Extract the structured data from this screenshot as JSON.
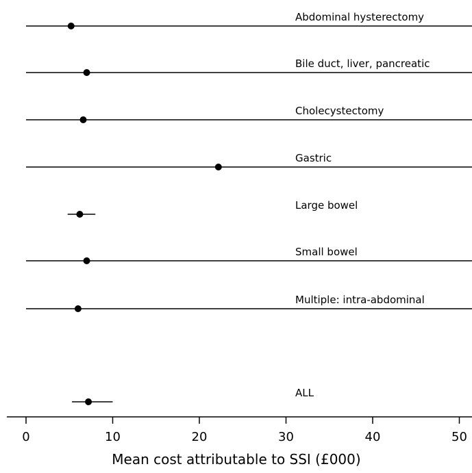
{
  "chart_data": {
    "type": "forest",
    "xlabel": "Mean cost attributable to SSI (£000)",
    "xlim": [
      -2,
      51.5
    ],
    "xticks": [
      0,
      10,
      20,
      30,
      40,
      50
    ],
    "grid": false,
    "rows": [
      {
        "label": "Abdominal hysterectomy",
        "estimate": 5.2,
        "ci": [
          0,
          51.5
        ]
      },
      {
        "label": "Bile duct, liver, pancreatic",
        "estimate": 7.0,
        "ci": [
          0,
          51.5
        ]
      },
      {
        "label": "Cholecystectomy",
        "estimate": 6.6,
        "ci": [
          0,
          51.5
        ]
      },
      {
        "label": "Gastric",
        "estimate": 22.2,
        "ci": [
          0,
          51.5
        ]
      },
      {
        "label": "Large bowel",
        "estimate": 6.2,
        "ci": [
          4.8,
          8.0
        ]
      },
      {
        "label": "Small bowel",
        "estimate": 7.0,
        "ci": [
          0,
          51.5
        ]
      },
      {
        "label": "Multiple: intra-abdominal",
        "estimate": 6.0,
        "ci": [
          0,
          51.5
        ]
      },
      {
        "label": "ALL",
        "estimate": 7.2,
        "ci": [
          5.3,
          10.0
        ]
      }
    ]
  }
}
